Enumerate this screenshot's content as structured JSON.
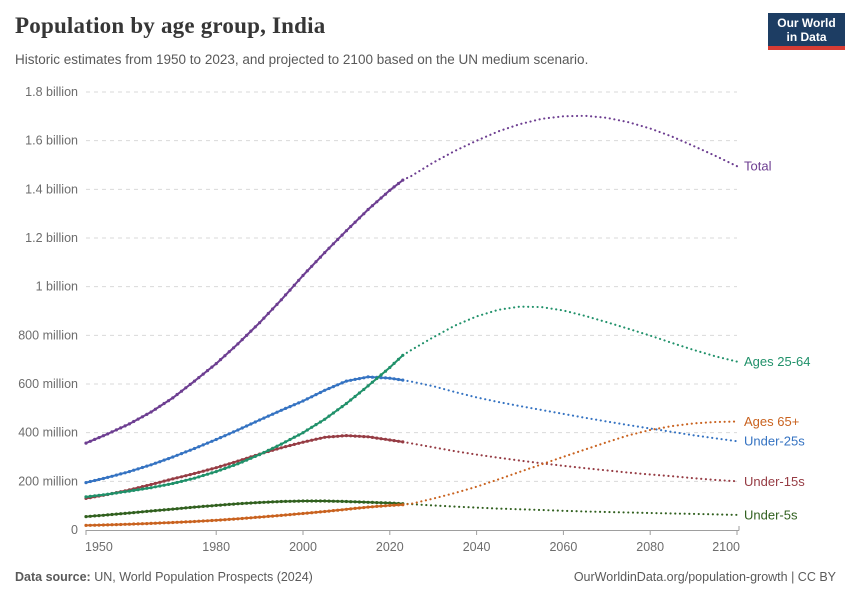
{
  "header": {
    "title": "Population by age group, India",
    "subtitle": "Historic estimates from 1950 to 2023, and projected to 2100 based on the UN medium scenario.",
    "logo": {
      "line1": "Our World",
      "line2": "in Data",
      "bg_color": "#1D3D63",
      "accent_color": "#D73C34"
    }
  },
  "footer": {
    "source_label": "Data source:",
    "source_text": " UN, World Population Prospects (2024)",
    "right_text": "OurWorldinData.org/population-growth | CC BY"
  },
  "chart_data": {
    "type": "line",
    "title": "Population by age group, India",
    "xlabel": "",
    "ylabel": "",
    "units": "people",
    "x_domain": [
      1950,
      2100
    ],
    "y_domain_millions": [
      0,
      1800
    ],
    "grid": "dashed-horizontal",
    "legend_position": "right-end-of-line",
    "historic_until": 2023,
    "historic_style": "solid-with-markers",
    "projection_style": "dotted",
    "x_ticks": [
      "1950",
      "1980",
      "2000",
      "2020",
      "2040",
      "2060",
      "2080",
      "2100"
    ],
    "y_ticks": [
      {
        "millions": 0,
        "label": "0"
      },
      {
        "millions": 200,
        "label": "200 million"
      },
      {
        "millions": 400,
        "label": "400 million"
      },
      {
        "millions": 600,
        "label": "600 million"
      },
      {
        "millions": 800,
        "label": "800 million"
      },
      {
        "millions": 1000,
        "label": "1 billion"
      },
      {
        "millions": 1200,
        "label": "1.2 billion"
      },
      {
        "millions": 1400,
        "label": "1.4 billion"
      },
      {
        "millions": 1600,
        "label": "1.6 billion"
      },
      {
        "millions": 1800,
        "label": "1.8 billion"
      }
    ],
    "axis_colors": {
      "grid": "#d9d9d9",
      "axis_line": "#9e9e9e",
      "tick_text": "#6d6d6d"
    },
    "series": [
      {
        "name": "Total",
        "color": "#6D3E91",
        "points_year_millions": [
          [
            1950,
            357
          ],
          [
            1955,
            395
          ],
          [
            1960,
            436
          ],
          [
            1965,
            485
          ],
          [
            1970,
            543
          ],
          [
            1975,
            612
          ],
          [
            1980,
            684
          ],
          [
            1985,
            765
          ],
          [
            1990,
            852
          ],
          [
            1995,
            946
          ],
          [
            2000,
            1046
          ],
          [
            2005,
            1140
          ],
          [
            2010,
            1230
          ],
          [
            2015,
            1317
          ],
          [
            2020,
            1396
          ],
          [
            2023,
            1438
          ],
          [
            2025,
            1455
          ],
          [
            2030,
            1510
          ],
          [
            2035,
            1558
          ],
          [
            2040,
            1600
          ],
          [
            2045,
            1638
          ],
          [
            2050,
            1668
          ],
          [
            2055,
            1690
          ],
          [
            2060,
            1700
          ],
          [
            2065,
            1702
          ],
          [
            2070,
            1694
          ],
          [
            2075,
            1676
          ],
          [
            2080,
            1650
          ],
          [
            2085,
            1617
          ],
          [
            2090,
            1578
          ],
          [
            2095,
            1538
          ],
          [
            2100,
            1495
          ]
        ]
      },
      {
        "name": "Under-25s",
        "color": "#3573C2",
        "points_year_millions": [
          [
            1950,
            195
          ],
          [
            1955,
            216
          ],
          [
            1960,
            240
          ],
          [
            1965,
            268
          ],
          [
            1970,
            300
          ],
          [
            1975,
            335
          ],
          [
            1980,
            372
          ],
          [
            1985,
            411
          ],
          [
            1990,
            452
          ],
          [
            1995,
            492
          ],
          [
            2000,
            530
          ],
          [
            2005,
            574
          ],
          [
            2010,
            612
          ],
          [
            2015,
            629
          ],
          [
            2020,
            624
          ],
          [
            2023,
            616
          ],
          [
            2025,
            610
          ],
          [
            2030,
            591
          ],
          [
            2035,
            567
          ],
          [
            2040,
            545
          ],
          [
            2045,
            526
          ],
          [
            2050,
            509
          ],
          [
            2055,
            493
          ],
          [
            2060,
            477
          ],
          [
            2065,
            461
          ],
          [
            2070,
            446
          ],
          [
            2075,
            431
          ],
          [
            2080,
            417
          ],
          [
            2085,
            403
          ],
          [
            2090,
            389
          ],
          [
            2095,
            377
          ],
          [
            2100,
            365
          ]
        ]
      },
      {
        "name": "Under-15s",
        "color": "#963C44",
        "points_year_millions": [
          [
            1950,
            130
          ],
          [
            1955,
            146
          ],
          [
            1960,
            165
          ],
          [
            1965,
            187
          ],
          [
            1970,
            210
          ],
          [
            1975,
            232
          ],
          [
            1980,
            256
          ],
          [
            1985,
            283
          ],
          [
            1990,
            312
          ],
          [
            1995,
            338
          ],
          [
            2000,
            361
          ],
          [
            2005,
            381
          ],
          [
            2010,
            388
          ],
          [
            2015,
            383
          ],
          [
            2020,
            370
          ],
          [
            2023,
            362
          ],
          [
            2025,
            356
          ],
          [
            2030,
            340
          ],
          [
            2035,
            324
          ],
          [
            2040,
            310
          ],
          [
            2045,
            297
          ],
          [
            2050,
            285
          ],
          [
            2055,
            274
          ],
          [
            2060,
            264
          ],
          [
            2065,
            254
          ],
          [
            2070,
            245
          ],
          [
            2075,
            236
          ],
          [
            2080,
            228
          ],
          [
            2085,
            221
          ],
          [
            2090,
            213
          ],
          [
            2095,
            206
          ],
          [
            2100,
            200
          ]
        ]
      },
      {
        "name": "Under-5s",
        "color": "#31601F",
        "points_year_millions": [
          [
            1950,
            55
          ],
          [
            1955,
            62
          ],
          [
            1960,
            70
          ],
          [
            1965,
            78
          ],
          [
            1970,
            86
          ],
          [
            1975,
            94
          ],
          [
            1980,
            101
          ],
          [
            1985,
            108
          ],
          [
            1990,
            113
          ],
          [
            1995,
            117
          ],
          [
            2000,
            119
          ],
          [
            2005,
            119
          ],
          [
            2010,
            117
          ],
          [
            2015,
            114
          ],
          [
            2020,
            111
          ],
          [
            2023,
            108
          ],
          [
            2025,
            106
          ],
          [
            2030,
            101
          ],
          [
            2035,
            96
          ],
          [
            2040,
            92
          ],
          [
            2045,
            88
          ],
          [
            2050,
            85
          ],
          [
            2055,
            82
          ],
          [
            2060,
            79
          ],
          [
            2065,
            76
          ],
          [
            2070,
            74
          ],
          [
            2075,
            72
          ],
          [
            2080,
            70
          ],
          [
            2085,
            68
          ],
          [
            2090,
            66
          ],
          [
            2095,
            64
          ],
          [
            2100,
            62
          ]
        ]
      },
      {
        "name": "Ages 65+",
        "color": "#C9621F",
        "points_year_millions": [
          [
            1950,
            19
          ],
          [
            1955,
            21
          ],
          [
            1960,
            24
          ],
          [
            1965,
            27
          ],
          [
            1970,
            31
          ],
          [
            1975,
            35
          ],
          [
            1980,
            40
          ],
          [
            1985,
            46
          ],
          [
            1990,
            53
          ],
          [
            1995,
            60
          ],
          [
            2000,
            68
          ],
          [
            2005,
            76
          ],
          [
            2010,
            85
          ],
          [
            2015,
            94
          ],
          [
            2020,
            101
          ],
          [
            2023,
            104
          ],
          [
            2025,
            108
          ],
          [
            2030,
            129
          ],
          [
            2035,
            152
          ],
          [
            2040,
            178
          ],
          [
            2045,
            208
          ],
          [
            2050,
            239
          ],
          [
            2055,
            270
          ],
          [
            2060,
            301
          ],
          [
            2065,
            331
          ],
          [
            2070,
            361
          ],
          [
            2075,
            389
          ],
          [
            2080,
            411
          ],
          [
            2085,
            427
          ],
          [
            2090,
            438
          ],
          [
            2095,
            444
          ],
          [
            2100,
            446
          ]
        ]
      },
      {
        "name": "Ages 25-64",
        "color": "#20916A",
        "points_year_millions": [
          [
            1950,
            136
          ],
          [
            1955,
            147
          ],
          [
            1960,
            160
          ],
          [
            1965,
            174
          ],
          [
            1970,
            191
          ],
          [
            1975,
            213
          ],
          [
            1980,
            240
          ],
          [
            1985,
            272
          ],
          [
            1990,
            310
          ],
          [
            1995,
            353
          ],
          [
            2000,
            400
          ],
          [
            2005,
            455
          ],
          [
            2010,
            520
          ],
          [
            2015,
            592
          ],
          [
            2020,
            668
          ],
          [
            2023,
            718
          ],
          [
            2025,
            740
          ],
          [
            2030,
            792
          ],
          [
            2035,
            840
          ],
          [
            2040,
            878
          ],
          [
            2045,
            905
          ],
          [
            2050,
            918
          ],
          [
            2055,
            916
          ],
          [
            2060,
            902
          ],
          [
            2065,
            880
          ],
          [
            2070,
            854
          ],
          [
            2075,
            827
          ],
          [
            2080,
            799
          ],
          [
            2085,
            769
          ],
          [
            2090,
            740
          ],
          [
            2095,
            714
          ],
          [
            2100,
            692
          ]
        ]
      }
    ]
  }
}
